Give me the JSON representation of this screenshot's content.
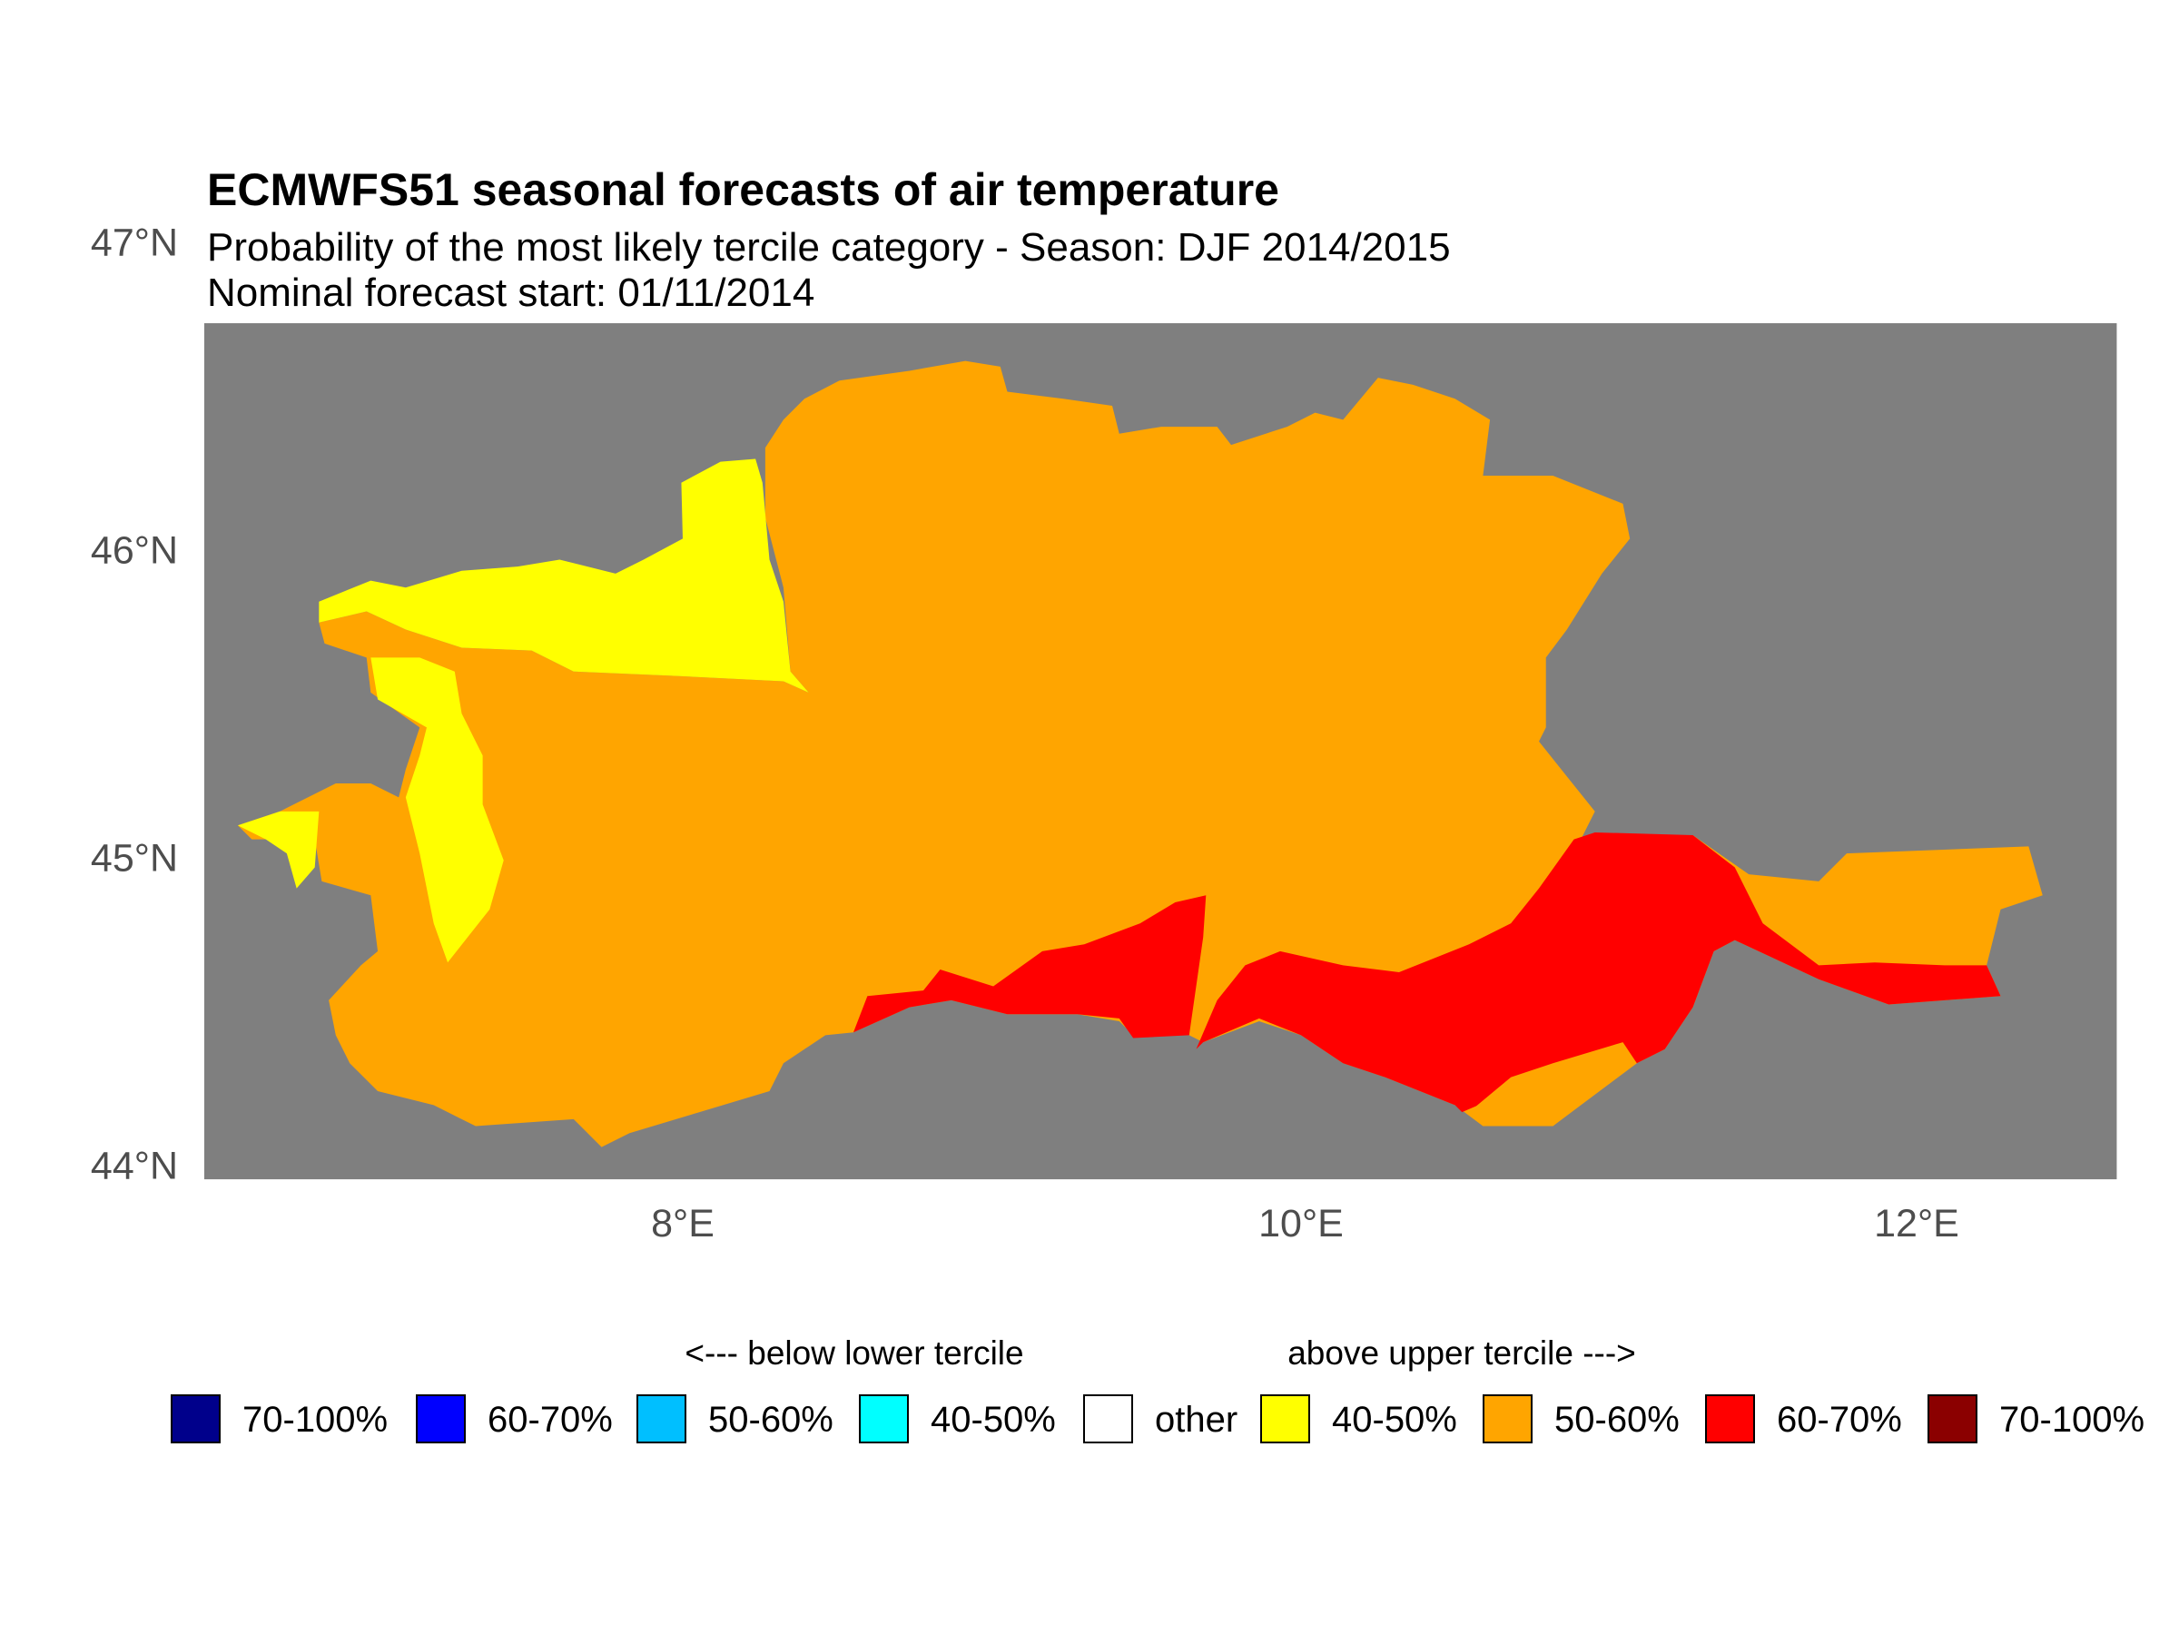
{
  "header": {
    "title": "ECMWFS51 seasonal forecasts of air temperature",
    "subtitle": "Probability of the most likely tercile category - Season: DJF 2014/2015",
    "nominal_start": "Nominal forecast start: 01/11/2014"
  },
  "axes": {
    "lat_labels": [
      "47°N",
      "46°N",
      "45°N",
      "44°N"
    ],
    "lon_labels": [
      "8°E",
      "10°E",
      "12°E"
    ]
  },
  "map_colors": {
    "background": "#7f7f7f",
    "yellow": "#ffff00",
    "orange": "#ffa500",
    "red": "#ff0000"
  },
  "legend": {
    "below_heading": "<--- below lower tercile",
    "above_heading": "above upper tercile --->",
    "items": [
      {
        "label": "70-100%",
        "color": "#00008b"
      },
      {
        "label": "60-70%",
        "color": "#0000ff"
      },
      {
        "label": "50-60%",
        "color": "#00bfff"
      },
      {
        "label": "40-50%",
        "color": "#00ffff"
      },
      {
        "label": "other",
        "color": "#ffffff"
      },
      {
        "label": "40-50%",
        "color": "#ffff00"
      },
      {
        "label": "50-60%",
        "color": "#ffa500"
      },
      {
        "label": "60-70%",
        "color": "#ff0000"
      },
      {
        "label": "70-100%",
        "color": "#8b0000"
      }
    ]
  }
}
